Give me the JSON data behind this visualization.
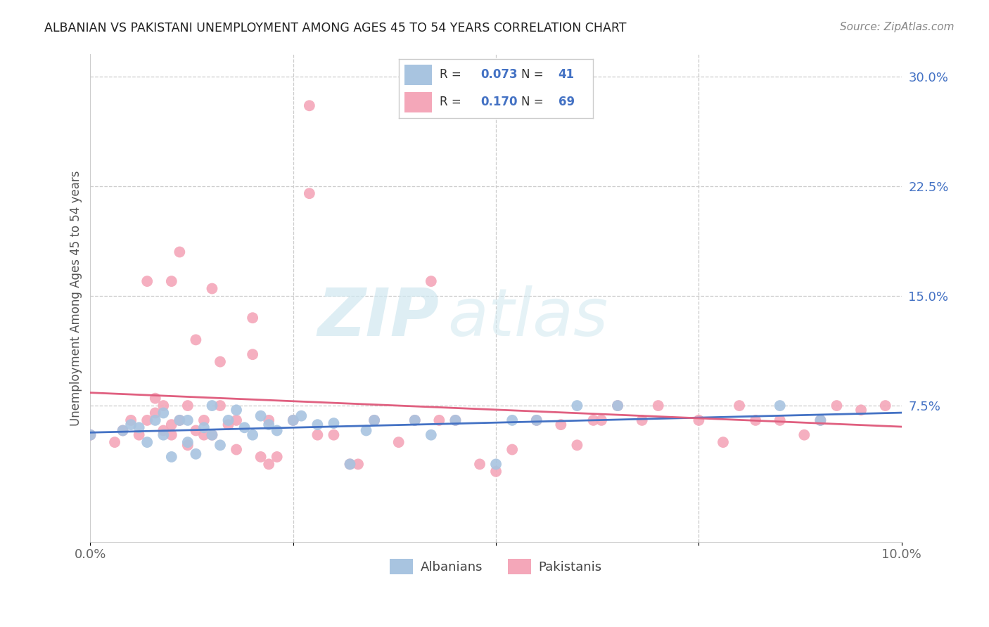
{
  "title": "ALBANIAN VS PAKISTANI UNEMPLOYMENT AMONG AGES 45 TO 54 YEARS CORRELATION CHART",
  "source": "Source: ZipAtlas.com",
  "ylabel": "Unemployment Among Ages 45 to 54 years",
  "xlim": [
    0.0,
    0.1
  ],
  "ylim": [
    -0.018,
    0.315
  ],
  "yticks": [
    0.0,
    0.075,
    0.15,
    0.225,
    0.3
  ],
  "ytick_labels": [
    "",
    "7.5%",
    "15.0%",
    "22.5%",
    "30.0%"
  ],
  "xticks": [
    0.0,
    0.025,
    0.05,
    0.075,
    0.1
  ],
  "xtick_labels": [
    "0.0%",
    "",
    "",
    "",
    "10.0%"
  ],
  "albanian_R": 0.073,
  "albanian_N": 41,
  "pakistani_R": 0.17,
  "pakistani_N": 69,
  "albanian_color": "#a8c4e0",
  "pakistani_color": "#f4a7b9",
  "albanian_line_color": "#4472c4",
  "pakistani_line_color": "#e06080",
  "background_color": "#ffffff",
  "grid_color": "#cccccc",
  "watermark_zip": "ZIP",
  "watermark_atlas": "atlas",
  "albanian_x": [
    0.0,
    0.004,
    0.005,
    0.006,
    0.007,
    0.008,
    0.009,
    0.009,
    0.01,
    0.011,
    0.012,
    0.012,
    0.013,
    0.014,
    0.015,
    0.015,
    0.016,
    0.017,
    0.018,
    0.019,
    0.02,
    0.021,
    0.022,
    0.023,
    0.025,
    0.026,
    0.028,
    0.03,
    0.032,
    0.034,
    0.035,
    0.04,
    0.042,
    0.045,
    0.05,
    0.052,
    0.055,
    0.06,
    0.065,
    0.085,
    0.09
  ],
  "albanian_y": [
    0.055,
    0.058,
    0.062,
    0.06,
    0.05,
    0.065,
    0.055,
    0.07,
    0.04,
    0.065,
    0.05,
    0.065,
    0.042,
    0.06,
    0.075,
    0.055,
    0.048,
    0.065,
    0.072,
    0.06,
    0.055,
    0.068,
    0.062,
    0.058,
    0.065,
    0.068,
    0.062,
    0.063,
    0.035,
    0.058,
    0.065,
    0.065,
    0.055,
    0.065,
    0.035,
    0.065,
    0.065,
    0.075,
    0.075,
    0.075,
    0.065
  ],
  "pakistani_x": [
    0.0,
    0.003,
    0.004,
    0.005,
    0.006,
    0.007,
    0.007,
    0.008,
    0.008,
    0.009,
    0.009,
    0.01,
    0.01,
    0.01,
    0.011,
    0.011,
    0.012,
    0.012,
    0.013,
    0.013,
    0.014,
    0.014,
    0.015,
    0.015,
    0.016,
    0.016,
    0.017,
    0.018,
    0.018,
    0.02,
    0.02,
    0.021,
    0.022,
    0.022,
    0.023,
    0.025,
    0.027,
    0.027,
    0.028,
    0.03,
    0.032,
    0.033,
    0.035,
    0.038,
    0.04,
    0.042,
    0.043,
    0.045,
    0.048,
    0.05,
    0.052,
    0.055,
    0.058,
    0.06,
    0.062,
    0.063,
    0.065,
    0.068,
    0.07,
    0.075,
    0.078,
    0.08,
    0.082,
    0.085,
    0.088,
    0.09,
    0.092,
    0.095,
    0.098
  ],
  "pakistani_y": [
    0.055,
    0.05,
    0.058,
    0.065,
    0.055,
    0.16,
    0.065,
    0.07,
    0.08,
    0.058,
    0.075,
    0.055,
    0.062,
    0.16,
    0.065,
    0.18,
    0.048,
    0.075,
    0.058,
    0.12,
    0.055,
    0.065,
    0.055,
    0.155,
    0.075,
    0.105,
    0.062,
    0.045,
    0.065,
    0.11,
    0.135,
    0.04,
    0.035,
    0.065,
    0.04,
    0.065,
    0.28,
    0.22,
    0.055,
    0.055,
    0.035,
    0.035,
    0.065,
    0.05,
    0.065,
    0.16,
    0.065,
    0.065,
    0.035,
    0.03,
    0.045,
    0.065,
    0.062,
    0.048,
    0.065,
    0.065,
    0.075,
    0.065,
    0.075,
    0.065,
    0.05,
    0.075,
    0.065,
    0.065,
    0.055,
    0.065,
    0.075,
    0.072,
    0.075
  ]
}
